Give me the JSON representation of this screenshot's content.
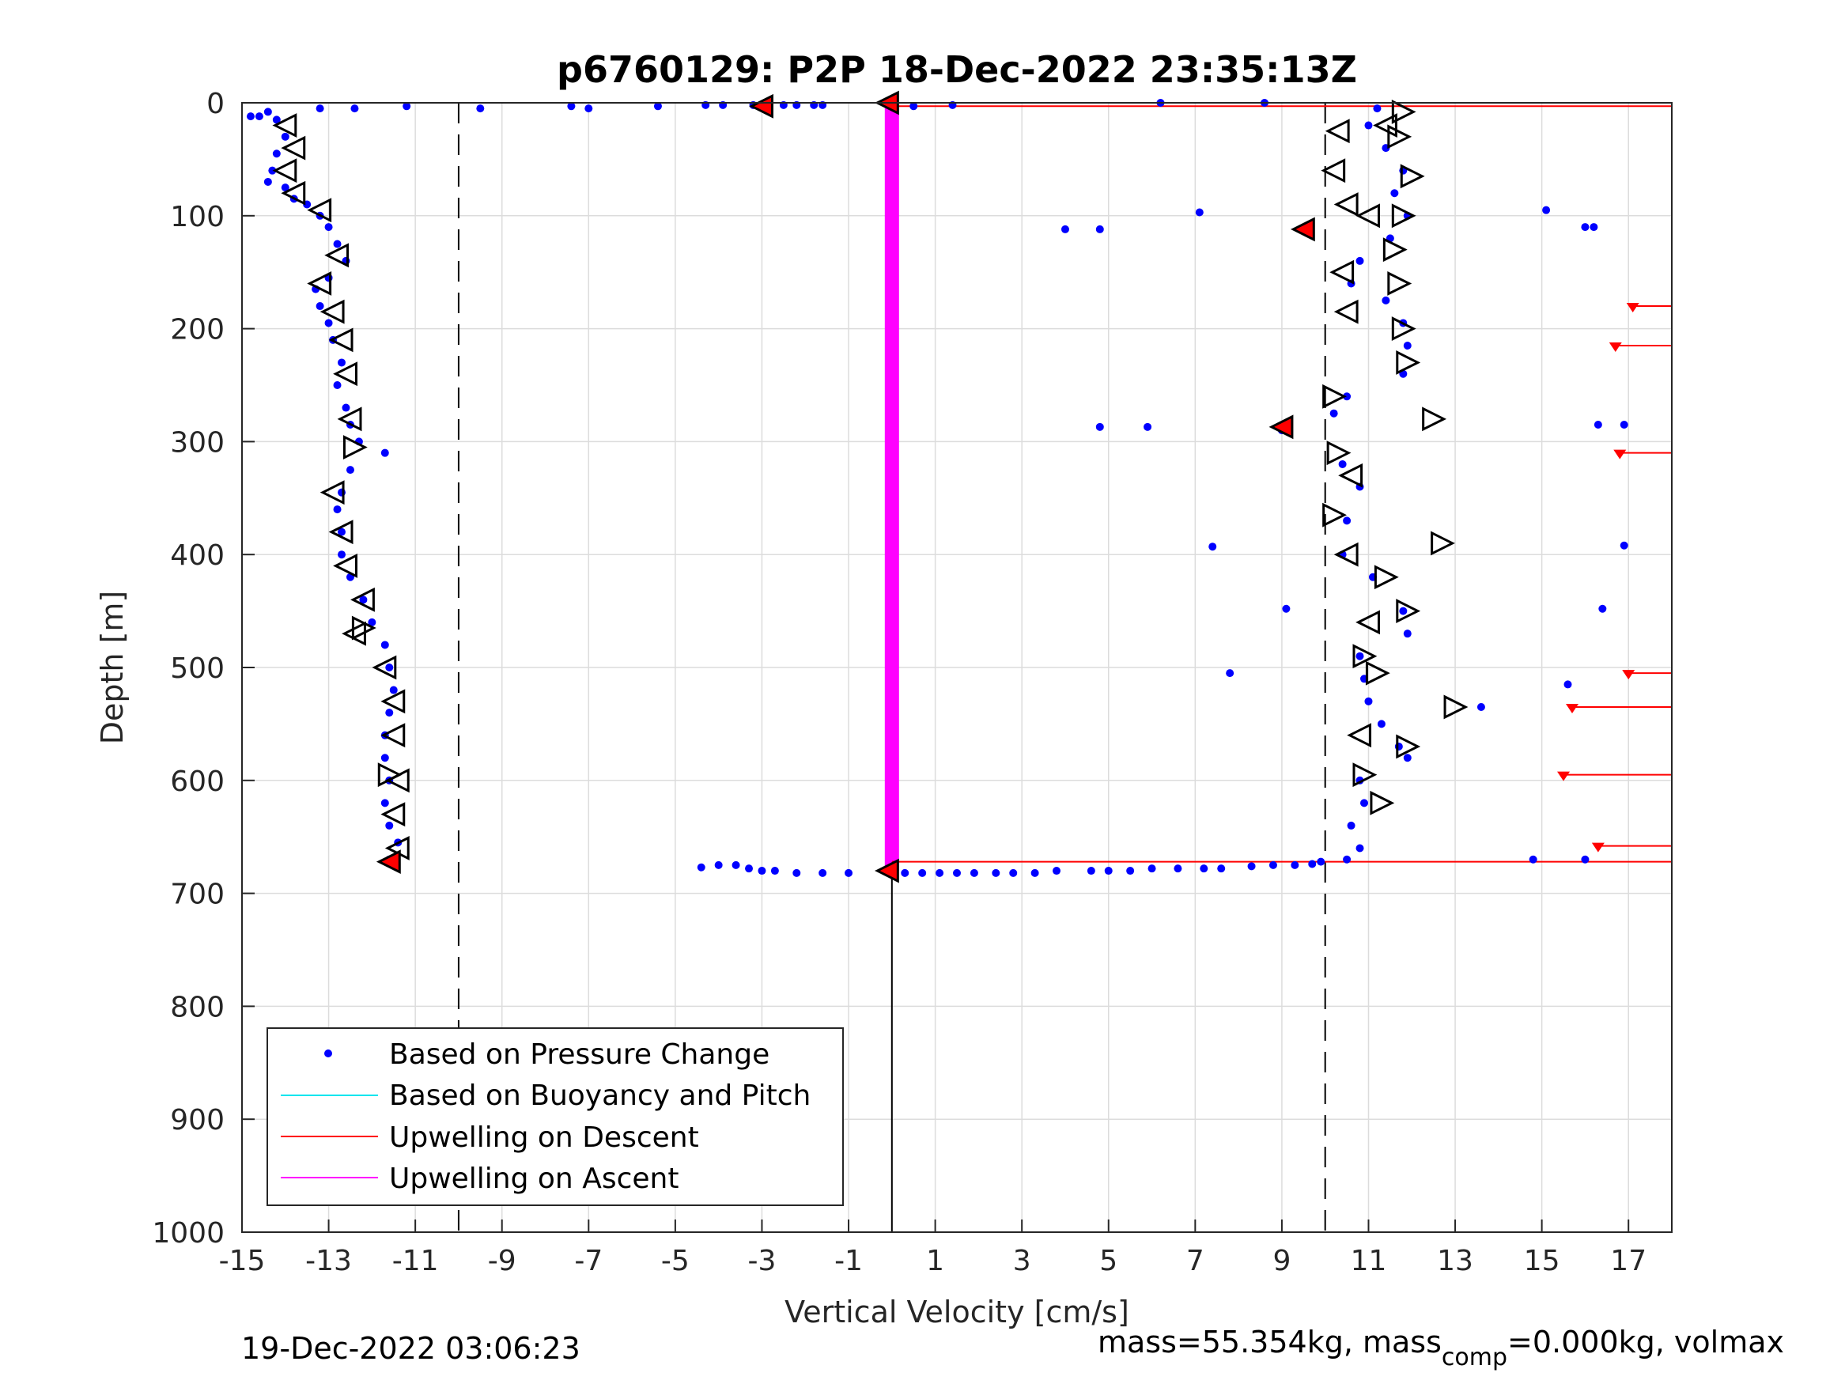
{
  "chart_data": {
    "type": "scatter",
    "title": "p6760129: P2P 18-Dec-2022 23:35:13Z",
    "xlabel": "Vertical Velocity [cm/s]",
    "ylabel": "Depth [m]",
    "xlim": [
      -15,
      18
    ],
    "ylim": [
      0,
      1000
    ],
    "y_reversed": true,
    "grid": true,
    "xticks": [
      -15,
      -13,
      -11,
      -9,
      -7,
      -5,
      -3,
      -1,
      1,
      3,
      5,
      7,
      9,
      11,
      13,
      15,
      17
    ],
    "xtick_labels": [
      "-15",
      "-13",
      "-11",
      "-9",
      "-7",
      "-5",
      "-3",
      "-1",
      "1",
      "3",
      "5",
      "7",
      "9",
      "11",
      "13",
      "15",
      "17"
    ],
    "yticks": [
      0,
      100,
      200,
      300,
      400,
      500,
      600,
      700,
      800,
      900,
      1000
    ],
    "ytick_labels": [
      "0",
      "100",
      "200",
      "300",
      "400",
      "500",
      "600",
      "700",
      "800",
      "900",
      "1000"
    ],
    "reference_lines": {
      "dashed_x": [
        -10,
        10
      ],
      "solid_x_below_depth": {
        "x": 0,
        "from_depth": 680,
        "to_depth": 1000
      }
    },
    "legend": {
      "location": "bottom-left",
      "entries": [
        {
          "label": "Based on Pressure Change",
          "color": "#0000ff",
          "marker": "dot"
        },
        {
          "label": "Based on Buoyancy and Pitch",
          "color": "#00e5ee",
          "marker": "line"
        },
        {
          "label": "Upwelling on Descent",
          "color": "#ff0000",
          "marker": "line"
        },
        {
          "label": "Upwelling on Ascent",
          "color": "#ff00ff",
          "marker": "line"
        }
      ]
    },
    "series": [
      {
        "name": "Based on Pressure Change",
        "color": "#0000ff",
        "descent": [
          [
            -14.8,
            12
          ],
          [
            -14.6,
            12
          ],
          [
            -14.4,
            8
          ],
          [
            -14.2,
            15
          ],
          [
            -14,
            30
          ],
          [
            -14.2,
            45
          ],
          [
            -14.3,
            60
          ],
          [
            -14.4,
            70
          ],
          [
            -14,
            75
          ],
          [
            -13.8,
            85
          ],
          [
            -13.5,
            90
          ],
          [
            -13.2,
            100
          ],
          [
            -13,
            110
          ],
          [
            -12.8,
            125
          ],
          [
            -12.6,
            140
          ],
          [
            -13,
            155
          ],
          [
            -13.3,
            165
          ],
          [
            -13.2,
            180
          ],
          [
            -13,
            195
          ],
          [
            -12.9,
            210
          ],
          [
            -12.7,
            230
          ],
          [
            -12.8,
            250
          ],
          [
            -12.6,
            270
          ],
          [
            -12.5,
            285
          ],
          [
            -12.3,
            300
          ],
          [
            -11.7,
            310
          ],
          [
            -12.5,
            325
          ],
          [
            -12.7,
            345
          ],
          [
            -12.8,
            360
          ],
          [
            -12.7,
            380
          ],
          [
            -12.7,
            400
          ],
          [
            -12.5,
            420
          ],
          [
            -12.2,
            440
          ],
          [
            -12,
            460
          ],
          [
            -11.7,
            480
          ],
          [
            -11.6,
            500
          ],
          [
            -11.5,
            520
          ],
          [
            -11.6,
            540
          ],
          [
            -11.7,
            560
          ],
          [
            -11.7,
            580
          ],
          [
            -11.6,
            600
          ],
          [
            -11.7,
            620
          ],
          [
            -11.6,
            640
          ],
          [
            -11.4,
            655
          ],
          [
            -11.6,
            670
          ],
          [
            -13.2,
            5
          ],
          [
            -12.4,
            5
          ],
          [
            -11.2,
            3
          ],
          [
            -9.5,
            5
          ],
          [
            -7.4,
            3
          ],
          [
            -7,
            5
          ],
          [
            -5.4,
            3
          ],
          [
            -4.3,
            2
          ],
          [
            -3.9,
            2
          ],
          [
            -3.2,
            2
          ],
          [
            -2.5,
            2
          ],
          [
            -2.2,
            2
          ],
          [
            -1.8,
            2
          ],
          [
            -1.6,
            2
          ],
          [
            0.5,
            3
          ],
          [
            1.4,
            2
          ]
        ],
        "ascent": [
          [
            11.2,
            5
          ],
          [
            11,
            20
          ],
          [
            11.4,
            40
          ],
          [
            11.8,
            60
          ],
          [
            11.6,
            80
          ],
          [
            11.9,
            100
          ],
          [
            11.5,
            120
          ],
          [
            10.8,
            140
          ],
          [
            10.6,
            160
          ],
          [
            11.4,
            175
          ],
          [
            11.8,
            195
          ],
          [
            11.9,
            215
          ],
          [
            11.8,
            240
          ],
          [
            10.5,
            260
          ],
          [
            10.2,
            275
          ],
          [
            9,
            290
          ],
          [
            10.4,
            320
          ],
          [
            10.8,
            340
          ],
          [
            10.5,
            370
          ],
          [
            10.4,
            400
          ],
          [
            11.1,
            420
          ],
          [
            11.8,
            450
          ],
          [
            11.9,
            470
          ],
          [
            10.8,
            490
          ],
          [
            10.9,
            510
          ],
          [
            11,
            530
          ],
          [
            11.3,
            550
          ],
          [
            11.7,
            570
          ],
          [
            11.9,
            580
          ],
          [
            10.8,
            600
          ],
          [
            10.9,
            620
          ],
          [
            10.6,
            640
          ],
          [
            10.8,
            660
          ],
          [
            10.5,
            670
          ],
          [
            9.9,
            672
          ],
          [
            4,
            112
          ],
          [
            4.8,
            112
          ],
          [
            7.1,
            97
          ],
          [
            15.1,
            95
          ],
          [
            16,
            110
          ],
          [
            16.2,
            110
          ],
          [
            4.8,
            287
          ],
          [
            5.9,
            287
          ],
          [
            7.4,
            393
          ],
          [
            9.1,
            448
          ],
          [
            7.8,
            505
          ],
          [
            15.6,
            515
          ],
          [
            13.6,
            535
          ],
          [
            16.3,
            285
          ],
          [
            16.9,
            285
          ],
          [
            16.9,
            392
          ],
          [
            16.4,
            448
          ],
          [
            14.8,
            670
          ],
          [
            16,
            670
          ],
          [
            6.2,
            0
          ],
          [
            8.6,
            0
          ]
        ],
        "bottom": [
          [
            -4.4,
            677
          ],
          [
            -4,
            675
          ],
          [
            -3.6,
            675
          ],
          [
            -3.3,
            678
          ],
          [
            -3,
            680
          ],
          [
            -2.7,
            680
          ],
          [
            -2.2,
            682
          ],
          [
            -1.6,
            682
          ],
          [
            -1,
            682
          ],
          [
            -0.1,
            680
          ],
          [
            0.3,
            682
          ],
          [
            0.7,
            682
          ],
          [
            1.1,
            682
          ],
          [
            1.5,
            682
          ],
          [
            1.9,
            682
          ],
          [
            2.4,
            682
          ],
          [
            2.8,
            682
          ],
          [
            3.3,
            682
          ],
          [
            3.8,
            680
          ],
          [
            4.6,
            680
          ],
          [
            5,
            680
          ],
          [
            5.5,
            680
          ],
          [
            6,
            678
          ],
          [
            6.6,
            678
          ],
          [
            7.2,
            678
          ],
          [
            7.6,
            678
          ],
          [
            8.3,
            676
          ],
          [
            8.8,
            675
          ],
          [
            9.3,
            675
          ],
          [
            9.7,
            674
          ]
        ]
      },
      {
        "name": "Upwelling on Descent",
        "color": "#ff0000",
        "depths": [
          3,
          672
        ],
        "segments_right": [
          [
            17.1,
            180
          ],
          [
            16.7,
            215
          ],
          [
            16.8,
            310
          ],
          [
            17,
            505
          ],
          [
            15.7,
            535
          ],
          [
            15.5,
            595
          ],
          [
            16.3,
            658
          ]
        ]
      },
      {
        "name": "Upwelling on Ascent",
        "color": "#ff00ff",
        "x": 0,
        "depth_range": [
          3,
          680
        ]
      }
    ],
    "triangle_markers": {
      "left": [
        [
          -14,
          20
        ],
        [
          -13.8,
          40
        ],
        [
          -14,
          60
        ],
        [
          -13.8,
          80
        ],
        [
          -13.2,
          95
        ],
        [
          -12.8,
          135
        ],
        [
          -13.2,
          160
        ],
        [
          -12.9,
          185
        ],
        [
          -12.7,
          210
        ],
        [
          -12.6,
          240
        ],
        [
          -12.5,
          280
        ],
        [
          -12.9,
          345
        ],
        [
          -12.7,
          380
        ],
        [
          -12.6,
          410
        ],
        [
          -12.2,
          440
        ],
        [
          -12.4,
          470
        ],
        [
          -11.7,
          500
        ],
        [
          -11.5,
          530
        ],
        [
          -11.5,
          560
        ],
        [
          -11.4,
          600
        ],
        [
          -11.5,
          630
        ],
        [
          -11.4,
          660
        ],
        [
          10.3,
          25
        ],
        [
          10.2,
          60
        ],
        [
          10.5,
          90
        ],
        [
          10.4,
          150
        ],
        [
          10.5,
          185
        ],
        [
          10.6,
          330
        ],
        [
          10.5,
          400
        ],
        [
          11,
          460
        ],
        [
          10.8,
          560
        ],
        [
          11.4,
          20
        ],
        [
          11,
          100
        ]
      ],
      "right": [
        [
          11.8,
          8
        ],
        [
          11.7,
          30
        ],
        [
          12,
          65
        ],
        [
          11.8,
          100
        ],
        [
          11.6,
          130
        ],
        [
          11.7,
          160
        ],
        [
          11.8,
          200
        ],
        [
          11.9,
          230
        ],
        [
          10.2,
          260
        ],
        [
          12.5,
          280
        ],
        [
          10.3,
          310
        ],
        [
          10.2,
          365
        ],
        [
          12.7,
          390
        ],
        [
          11.4,
          420
        ],
        [
          11.9,
          450
        ],
        [
          10.9,
          490
        ],
        [
          11.2,
          505
        ],
        [
          13,
          535
        ],
        [
          11.9,
          570
        ],
        [
          10.9,
          595
        ],
        [
          11.3,
          620
        ],
        [
          -12.4,
          305
        ],
        [
          -12.2,
          465
        ],
        [
          -11.6,
          595
        ]
      ],
      "red_filled": [
        [
          -3,
          3
        ],
        [
          -0.1,
          0
        ],
        [
          -11.6,
          672
        ],
        [
          9.5,
          112
        ],
        [
          9,
          287
        ],
        [
          -0.1,
          680
        ]
      ]
    }
  },
  "footer": {
    "timestamp": "19-Dec-2022 03:06:23",
    "mass_text": "mass=55.354kg, mass",
    "mass_sub": "comp",
    "mass_rest": "=0.000kg, volmax"
  }
}
